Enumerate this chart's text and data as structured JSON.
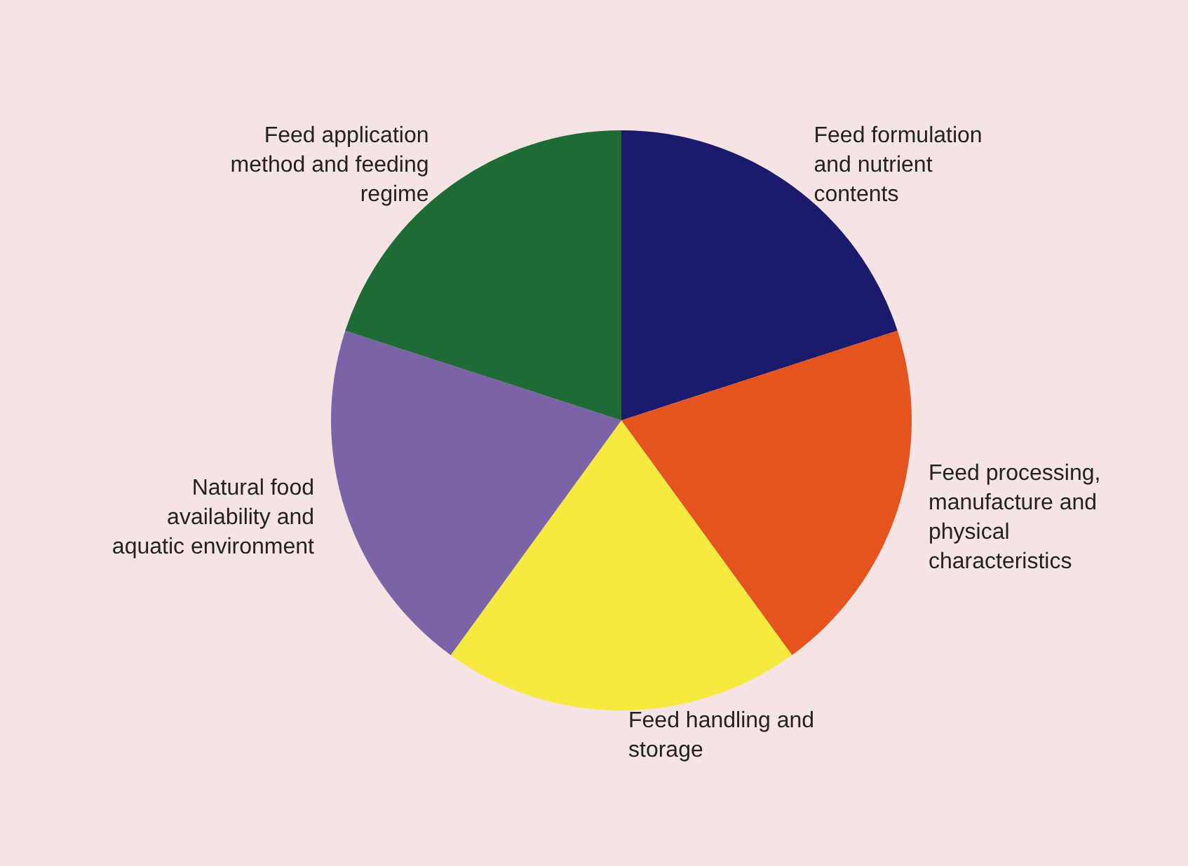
{
  "chart_data": {
    "type": "pie",
    "categories": [
      "Feed formulation\nand nutrient\ncontents",
      "Feed processing,\nmanufacture and\nphysical\ncharacteristics",
      "Feed handling and\nstorage",
      "Natural food\navailability and\naquatic environment",
      "Feed application\nmethod and feeding\nregime"
    ],
    "values": [
      20,
      20,
      20,
      20,
      20
    ],
    "colors": [
      "#1c1a6b",
      "#e5531e",
      "#f6e93f",
      "#7a63a6",
      "#1e6b35"
    ]
  }
}
